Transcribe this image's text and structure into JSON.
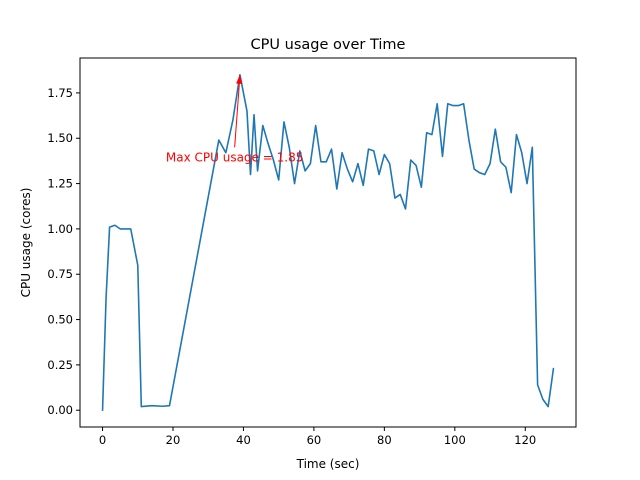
{
  "chart_data": {
    "type": "line",
    "title": "CPU usage over Time",
    "xlabel": "Time (sec)",
    "ylabel": "CPU usage (cores)",
    "xlim": [
      -6.4,
      134.4
    ],
    "ylim": [
      -0.0925,
      1.9425
    ],
    "xticks": [
      0,
      20,
      40,
      60,
      80,
      100,
      120
    ],
    "xtick_labels": [
      "0",
      "20",
      "40",
      "60",
      "80",
      "100",
      "120"
    ],
    "yticks": [
      0.0,
      0.25,
      0.5,
      0.75,
      1.0,
      1.25,
      1.5,
      1.75
    ],
    "ytick_labels": [
      "0.00",
      "0.25",
      "0.50",
      "0.75",
      "1.00",
      "1.25",
      "1.50",
      "1.75"
    ],
    "grid": false,
    "line_color": "#1f77b4",
    "series": [
      {
        "x": [
          0,
          1,
          2,
          3.5,
          5,
          6.5,
          8,
          10,
          11,
          14,
          17,
          19,
          33,
          35,
          37,
          39,
          41,
          42,
          43,
          44,
          45.5,
          47,
          48.5,
          50,
          51.5,
          53,
          54.5,
          56,
          57.5,
          59,
          60.5,
          62,
          63.5,
          65,
          66.5,
          68,
          69.5,
          71,
          72.5,
          74,
          75.5,
          77,
          78.5,
          80,
          81.5,
          83,
          84.5,
          86,
          87.5,
          89,
          90.5,
          92,
          93.5,
          95,
          96.5,
          98,
          99.5,
          101,
          102.5,
          104,
          105.5,
          107,
          108.5,
          110,
          111.5,
          113,
          114.5,
          116,
          117.5,
          119,
          120.5,
          122,
          123.5,
          125,
          126.5,
          128
        ],
        "y": [
          0.0,
          0.62,
          1.01,
          1.02,
          1.0,
          1.0,
          1.0,
          0.8,
          0.02,
          0.025,
          0.022,
          0.025,
          1.49,
          1.42,
          1.6,
          1.85,
          1.65,
          1.3,
          1.63,
          1.32,
          1.57,
          1.47,
          1.38,
          1.27,
          1.59,
          1.45,
          1.25,
          1.43,
          1.32,
          1.36,
          1.57,
          1.37,
          1.37,
          1.44,
          1.22,
          1.42,
          1.33,
          1.26,
          1.36,
          1.24,
          1.44,
          1.43,
          1.3,
          1.41,
          1.36,
          1.17,
          1.19,
          1.11,
          1.38,
          1.35,
          1.23,
          1.53,
          1.52,
          1.69,
          1.4,
          1.69,
          1.68,
          1.68,
          1.69,
          1.49,
          1.33,
          1.31,
          1.3,
          1.36,
          1.55,
          1.37,
          1.34,
          1.2,
          1.52,
          1.42,
          1.25,
          1.45,
          0.14,
          0.06,
          0.02,
          0.23
        ]
      }
    ],
    "annotation": {
      "text": "Max CPU usage = 1.85",
      "point": [
        39,
        1.85
      ],
      "text_pos": [
        37.5,
        1.45
      ],
      "color": "#ff0000"
    }
  }
}
